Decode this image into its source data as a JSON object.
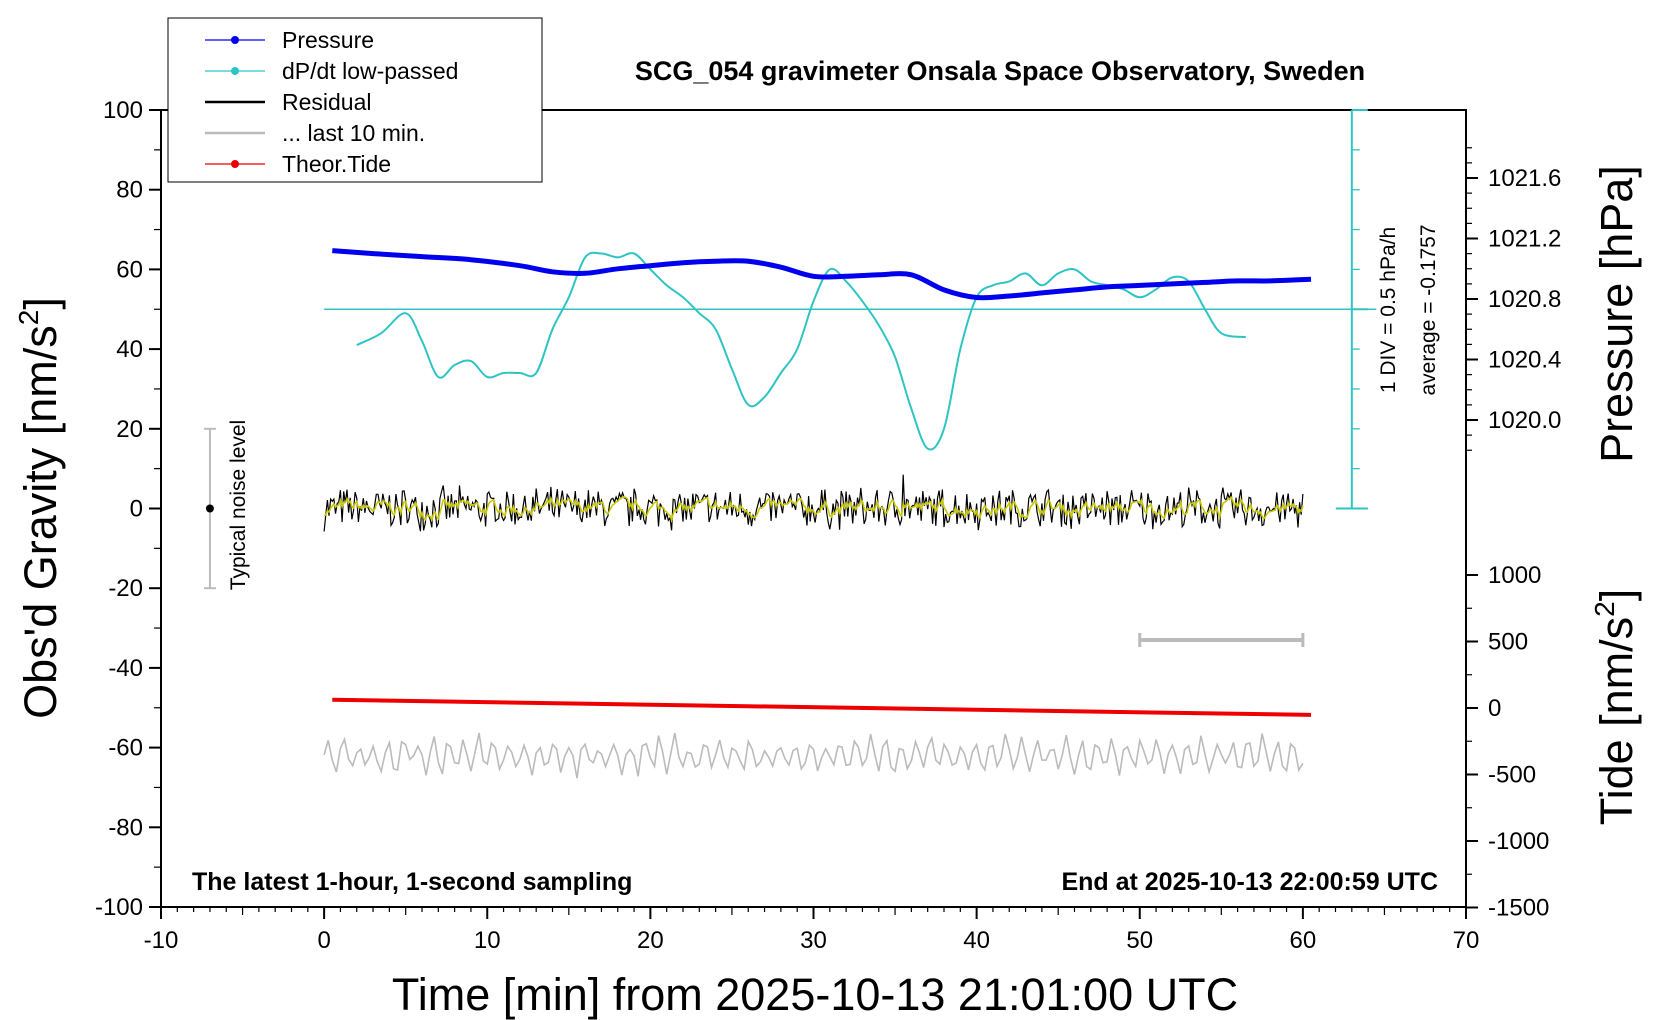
{
  "chart_data": {
    "type": "line",
    "title": "SCG_054 gravimeter Onsala Space Observatory, Sweden",
    "xlabel": "Time [min] from 2025-10-13 21:01:00 UTC",
    "ylabel_left": "Obs'd Gravity [nm/s",
    "ylabel_left_sup": "2",
    "ylabel_left_tail": "]",
    "ylabel_right_pressure": "Pressure [hPa]",
    "ylabel_right_tide": "Tide [nm/s",
    "ylabel_right_tide_sup": "2",
    "ylabel_right_tide_tail": "]",
    "xlim": [
      -10,
      70
    ],
    "ylim": [
      -100,
      100
    ],
    "xticks": [
      "-10",
      "0",
      "10",
      "20",
      "30",
      "40",
      "50",
      "60",
      "70"
    ],
    "yticks": [
      "100",
      "80",
      "60",
      "40",
      "20",
      "0",
      "-20",
      "-40",
      "-60",
      "-80",
      "-100"
    ],
    "pressure_axis": {
      "ticks": [
        "1021.6",
        "1021.2",
        "1020.8",
        "1020.4",
        "1020.0"
      ],
      "tick_values": [
        1021.6,
        1021.2,
        1020.8,
        1020.4,
        1020.0
      ]
    },
    "tide_axis": {
      "ticks": [
        "1000",
        "500",
        "0",
        "-500",
        "-1000",
        "-1500"
      ],
      "tick_values": [
        1000,
        500,
        0,
        -500,
        -1000,
        -1500
      ]
    },
    "legend": [
      "Pressure",
      "dP/dt low-passed",
      "Residual",
      "... last 10 min.",
      "Theor.Tide"
    ],
    "legend_position": "top-left",
    "annotations": {
      "noise_label": "Typical noise level",
      "dpdt_scale": "1 DIV = 0.5 hPa/h",
      "dpdt_average": "average = -0.1757",
      "bottom_left": "The latest 1-hour, 1-second sampling",
      "bottom_right": "End at 2025-10-13 22:00:59 UTC"
    },
    "colors": {
      "pressure": "#0000ee",
      "dpdt": "#2ec4c4",
      "residual": "#000000",
      "residual_smooth": "#c8c800",
      "last10": "#bbbbbb",
      "tide": "#ee0000"
    },
    "series": [
      {
        "name": "Pressure",
        "units": "hPa",
        "x": [
          0.5,
          3,
          6,
          9,
          12,
          14,
          16,
          18,
          20,
          22,
          24,
          26,
          28,
          30,
          32,
          34,
          36,
          38,
          40,
          42,
          44,
          46,
          48,
          50,
          52,
          54,
          56,
          58,
          60.5
        ],
        "values": [
          1021.12,
          1021.1,
          1021.08,
          1021.06,
          1021.02,
          1020.98,
          1020.97,
          1021.0,
          1021.02,
          1021.04,
          1021.05,
          1021.05,
          1021.01,
          1020.95,
          1020.95,
          1020.96,
          1020.96,
          1020.86,
          1020.81,
          1020.82,
          1020.84,
          1020.86,
          1020.88,
          1020.89,
          1020.9,
          1020.91,
          1020.92,
          1020.92,
          1020.93
        ]
      },
      {
        "name": "dP/dt low-passed",
        "units": "nm/s2 plot units",
        "x": [
          2,
          3.5,
          5,
          6,
          7,
          8,
          9,
          10,
          11,
          12,
          13,
          14,
          15,
          16,
          17,
          18,
          19,
          20,
          21,
          22,
          23,
          24,
          25,
          26,
          27,
          28,
          29,
          30,
          31,
          32,
          33,
          34,
          35,
          36,
          37,
          38,
          39,
          40,
          41,
          42,
          43,
          44,
          45,
          46,
          47,
          48,
          49,
          50,
          51,
          52,
          53,
          54,
          55,
          56.5
        ],
        "values": [
          41,
          44,
          49,
          42,
          33,
          36,
          37,
          33,
          34,
          34,
          34,
          45,
          53,
          63,
          64,
          63,
          64,
          60,
          56,
          53,
          49,
          45,
          35,
          26,
          28,
          34,
          40,
          52,
          60,
          57,
          52,
          46,
          38,
          25,
          15,
          20,
          40,
          53,
          56,
          57,
          59,
          56,
          59,
          60,
          57,
          56,
          55,
          53,
          55,
          58,
          57,
          50,
          44,
          43
        ]
      },
      {
        "name": "Residual",
        "units": "nm/s2",
        "x_range": [
          0,
          60
        ],
        "baseline": 0,
        "spread": 5
      },
      {
        "name": "... last 10 min.",
        "units": "nm/s2",
        "x_range": [
          0,
          60
        ],
        "baseline": -62,
        "spread": 4
      },
      {
        "name": "Theor.Tide",
        "units": "nm/s2",
        "x": [
          0.5,
          60.5
        ],
        "values": [
          -48,
          -51.8
        ]
      }
    ]
  }
}
